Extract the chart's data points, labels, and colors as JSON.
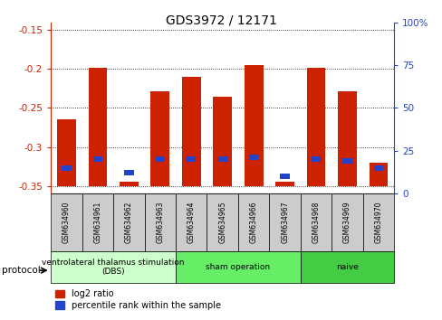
{
  "title": "GDS3972 / 12171",
  "samples": [
    "GSM634960",
    "GSM634961",
    "GSM634962",
    "GSM634963",
    "GSM634964",
    "GSM634965",
    "GSM634966",
    "GSM634967",
    "GSM634968",
    "GSM634969",
    "GSM634970"
  ],
  "log2_ratio": [
    -0.265,
    -0.198,
    -0.345,
    -0.228,
    -0.21,
    -0.235,
    -0.195,
    -0.345,
    -0.198,
    -0.228,
    -0.32
  ],
  "percentile_rank": [
    15,
    20,
    12,
    20,
    20,
    20,
    21,
    10,
    20,
    19,
    15
  ],
  "bar_bottom": -0.35,
  "ylim_left": [
    -0.36,
    -0.14
  ],
  "ylim_right": [
    0,
    100
  ],
  "yticks_left": [
    -0.35,
    -0.3,
    -0.25,
    -0.2,
    -0.15
  ],
  "yticks_right": [
    0,
    25,
    50,
    75,
    100
  ],
  "bar_color": "#cc2200",
  "blue_color": "#2244cc",
  "protocol_groups": [
    {
      "label": "ventrolateral thalamus stimulation\n(DBS)",
      "start": 0,
      "end": 4,
      "color": "#ccffcc"
    },
    {
      "label": "sham operation",
      "start": 4,
      "end": 8,
      "color": "#66ee66"
    },
    {
      "label": "naive",
      "start": 8,
      "end": 11,
      "color": "#44cc44"
    }
  ],
  "protocol_label": "protocol",
  "legend_red": "log2 ratio",
  "legend_blue": "percentile rank within the sample",
  "bar_width": 0.6,
  "left_axis_color": "#cc2200",
  "right_axis_color": "#2244cc"
}
